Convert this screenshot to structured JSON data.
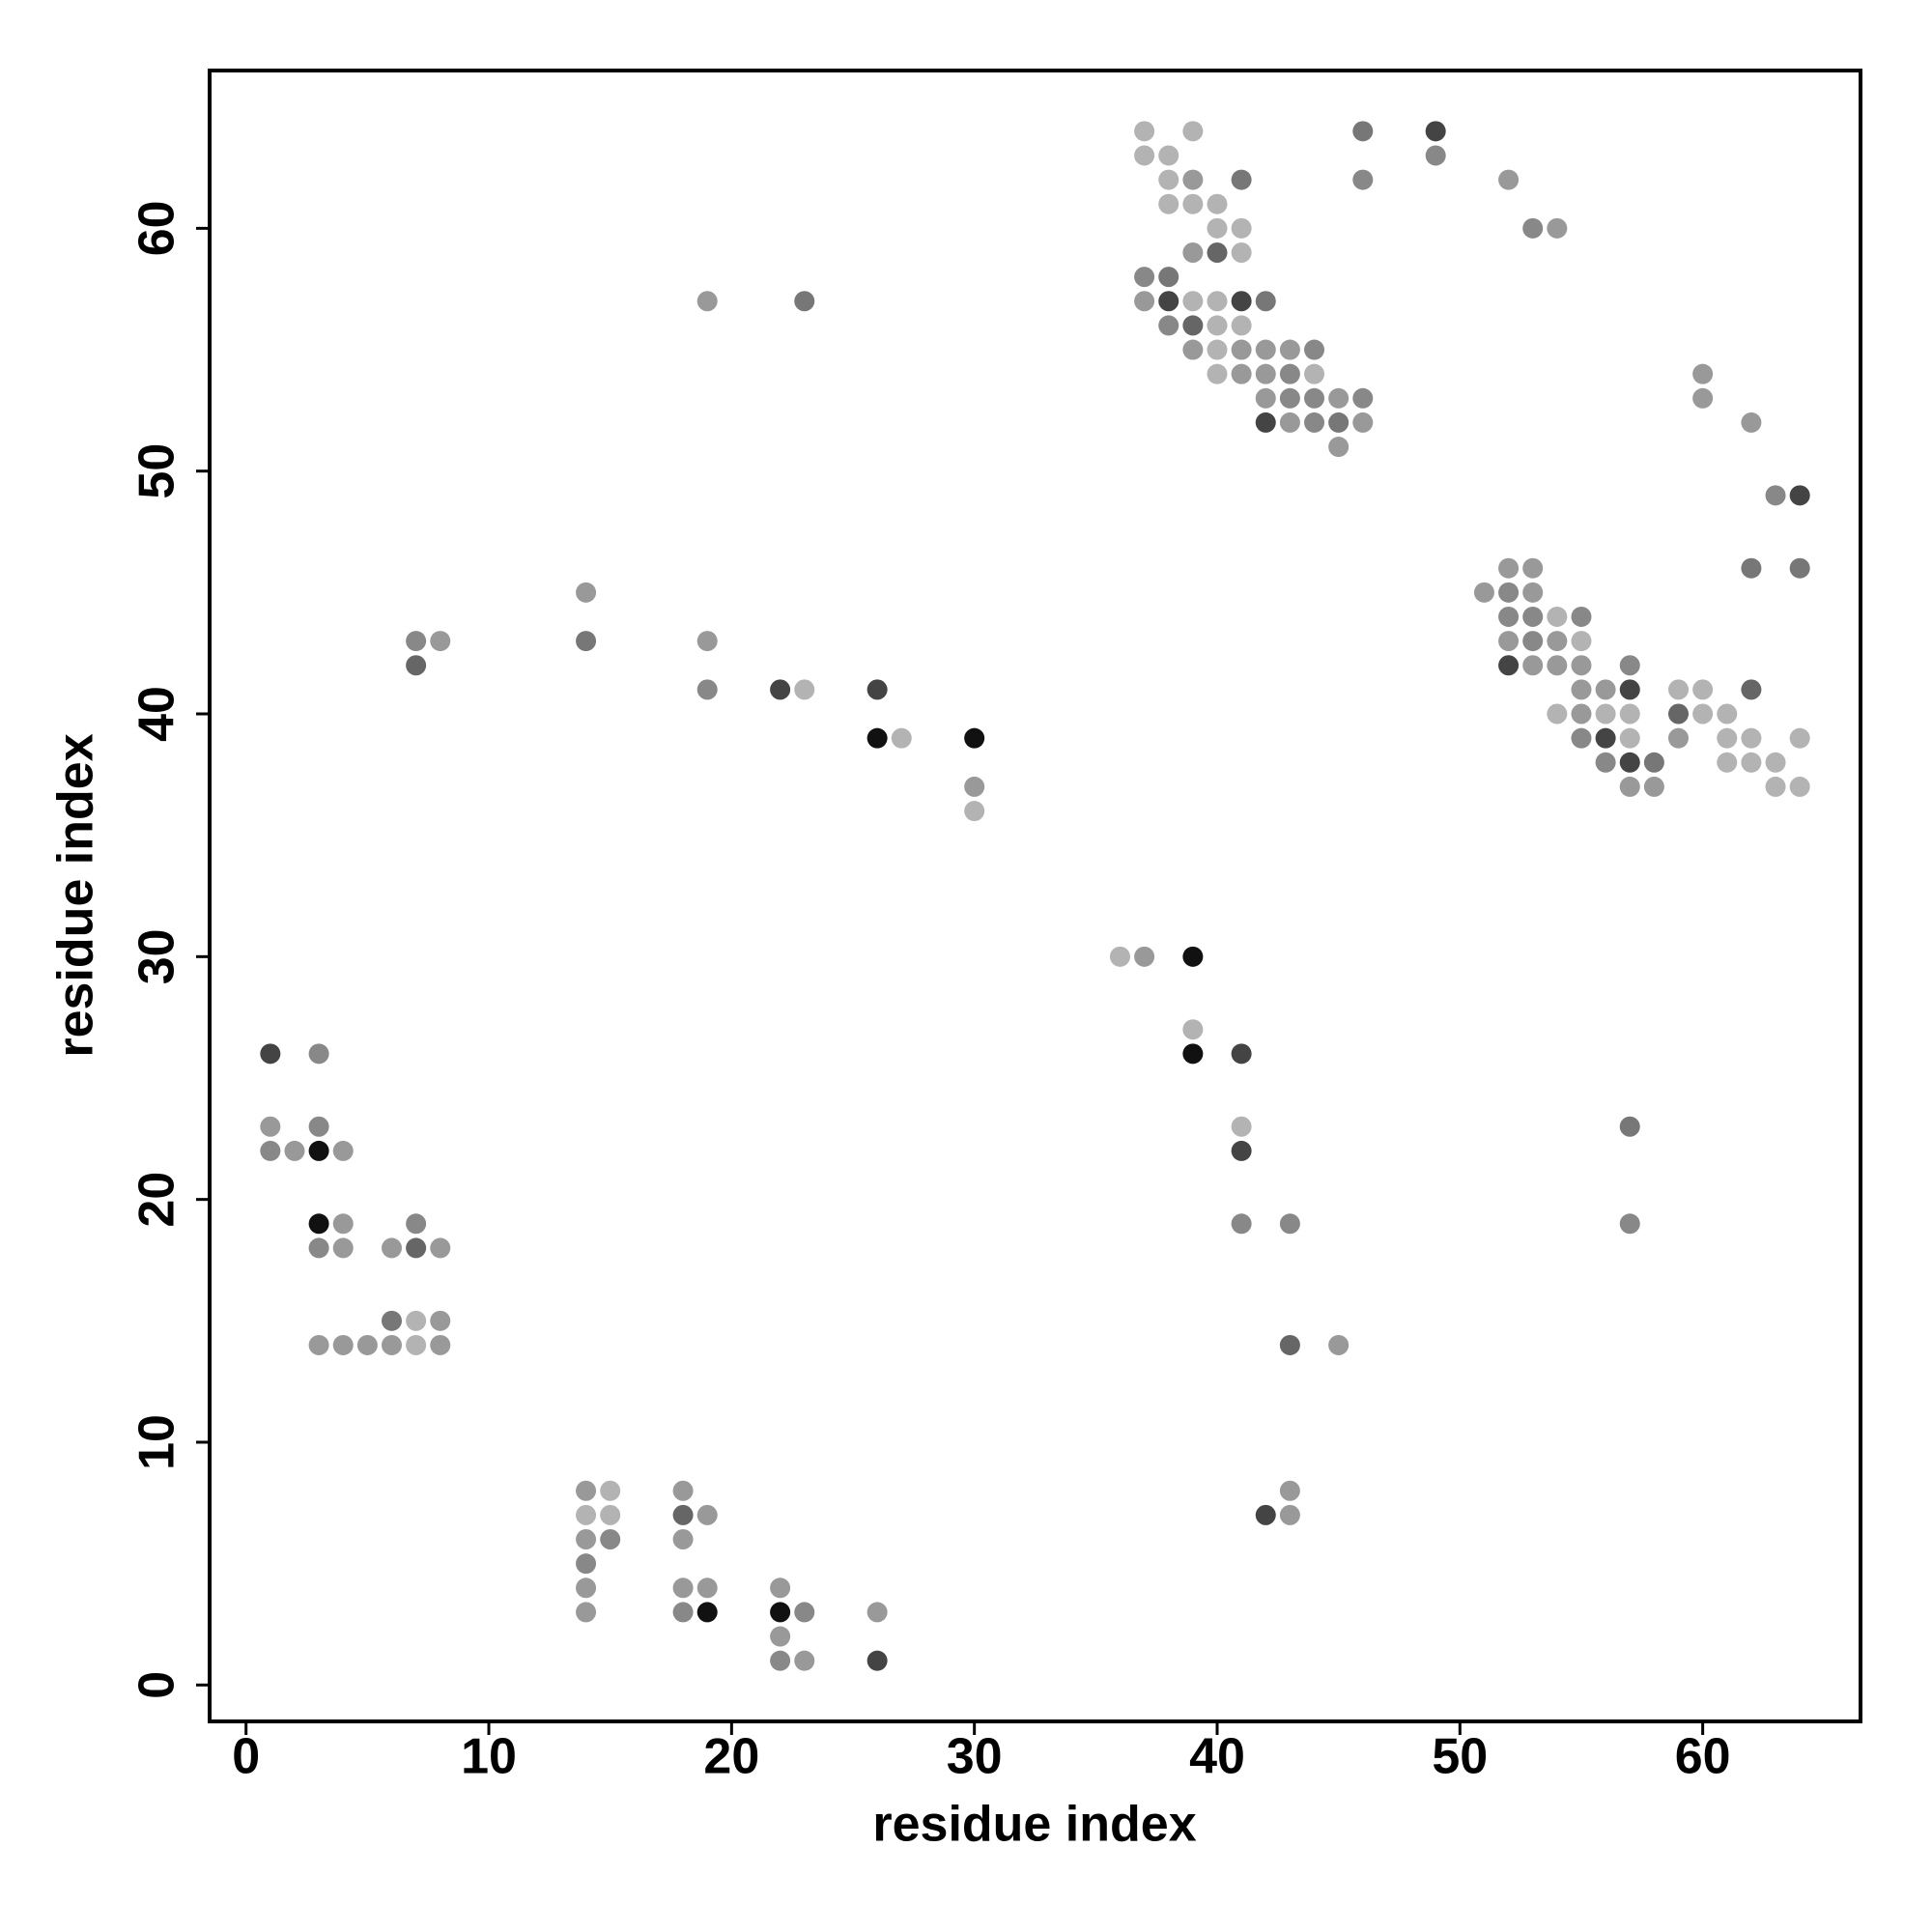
{
  "chart_data": {
    "type": "scatter",
    "xlabel": "residue index",
    "ylabel": "residue index",
    "xlim": [
      -1.5,
      66.5
    ],
    "ylim": [
      -1.5,
      66.5
    ],
    "xticks": [
      0,
      10,
      20,
      30,
      40,
      50,
      60
    ],
    "yticks": [
      0,
      10,
      20,
      30,
      40,
      50,
      60
    ],
    "x": [
      37,
      39,
      46,
      49,
      37,
      38,
      49,
      38,
      39,
      41,
      46,
      52,
      38,
      39,
      40,
      40,
      41,
      53,
      54,
      39,
      40,
      41,
      37,
      38,
      19,
      23,
      37,
      38,
      39,
      40,
      41,
      42,
      38,
      39,
      40,
      41,
      39,
      40,
      41,
      42,
      43,
      44,
      40,
      41,
      42,
      43,
      44,
      60,
      42,
      43,
      44,
      45,
      46,
      60,
      42,
      43,
      44,
      45,
      46,
      62,
      45,
      63,
      64,
      52,
      53,
      62,
      64,
      14,
      51,
      52,
      53,
      52,
      53,
      54,
      55,
      7,
      8,
      14,
      19,
      52,
      53,
      54,
      55,
      7,
      52,
      53,
      54,
      55,
      57,
      19,
      22,
      23,
      26,
      55,
      56,
      57,
      59,
      60,
      62,
      54,
      55,
      56,
      57,
      59,
      60,
      61,
      26,
      27,
      30,
      55,
      56,
      57,
      59,
      61,
      62,
      64,
      56,
      57,
      58,
      61,
      62,
      63,
      30,
      57,
      58,
      63,
      64,
      30,
      36,
      37,
      39,
      39,
      1,
      3,
      39,
      41,
      1,
      3,
      41,
      57,
      1,
      2,
      3,
      4,
      41,
      3,
      4,
      7,
      41,
      43,
      57,
      3,
      4,
      6,
      7,
      8,
      6,
      7,
      8,
      3,
      4,
      5,
      6,
      7,
      8,
      43,
      45,
      14,
      15,
      18,
      43,
      14,
      15,
      18,
      19,
      42,
      43,
      14,
      15,
      18,
      14,
      14,
      18,
      19,
      22,
      14,
      18,
      19,
      22,
      23,
      26,
      22,
      22,
      23,
      26
    ],
    "values": [
      64,
      64,
      64,
      64,
      63,
      63,
      63,
      62,
      62,
      62,
      62,
      62,
      61,
      61,
      61,
      60,
      60,
      60,
      60,
      59,
      59,
      59,
      58,
      58,
      57,
      57,
      57,
      57,
      57,
      57,
      57,
      57,
      56,
      56,
      56,
      56,
      55,
      55,
      55,
      55,
      55,
      55,
      54,
      54,
      54,
      54,
      54,
      54,
      53,
      53,
      53,
      53,
      53,
      53,
      52,
      52,
      52,
      52,
      52,
      52,
      51,
      49,
      49,
      46,
      46,
      46,
      46,
      45,
      45,
      45,
      45,
      44,
      44,
      44,
      44,
      43,
      43,
      43,
      43,
      43,
      43,
      43,
      43,
      42,
      42,
      42,
      42,
      42,
      42,
      41,
      41,
      41,
      41,
      41,
      41,
      41,
      41,
      41,
      41,
      40,
      40,
      40,
      40,
      40,
      40,
      40,
      39,
      39,
      39,
      39,
      39,
      39,
      39,
      39,
      39,
      39,
      38,
      38,
      38,
      38,
      38,
      38,
      37,
      37,
      37,
      37,
      37,
      36,
      30,
      30,
      30,
      27,
      26,
      26,
      26,
      26,
      23,
      23,
      23,
      23,
      22,
      22,
      22,
      22,
      22,
      19,
      19,
      19,
      19,
      19,
      19,
      18,
      18,
      18,
      18,
      18,
      15,
      15,
      15,
      14,
      14,
      14,
      14,
      14,
      14,
      14,
      14,
      8,
      8,
      8,
      8,
      7,
      7,
      7,
      7,
      7,
      7,
      6,
      6,
      6,
      5,
      4,
      4,
      4,
      4,
      3,
      3,
      3,
      3,
      3,
      3,
      2,
      1,
      1,
      1
    ],
    "colors": [
      "#b3b3b3",
      "#b3b3b3",
      "#777777",
      "#444444",
      "#b3b3b3",
      "#b3b3b3",
      "#888888",
      "#b3b3b3",
      "#999999",
      "#777777",
      "#888888",
      "#999999",
      "#b3b3b3",
      "#b3b3b3",
      "#b3b3b3",
      "#b3b3b3",
      "#b3b3b3",
      "#888888",
      "#999999",
      "#999999",
      "#666666",
      "#b3b3b3",
      "#888888",
      "#777777",
      "#999999",
      "#777777",
      "#999999",
      "#444444",
      "#b3b3b3",
      "#b3b3b3",
      "#444444",
      "#777777",
      "#888888",
      "#666666",
      "#b3b3b3",
      "#b3b3b3",
      "#999999",
      "#b3b3b3",
      "#999999",
      "#999999",
      "#999999",
      "#888888",
      "#b3b3b3",
      "#999999",
      "#999999",
      "#888888",
      "#b3b3b3",
      "#999999",
      "#999999",
      "#888888",
      "#888888",
      "#999999",
      "#888888",
      "#999999",
      "#444444",
      "#999999",
      "#888888",
      "#777777",
      "#999999",
      "#999999",
      "#999999",
      "#888888",
      "#444444",
      "#999999",
      "#999999",
      "#777777",
      "#777777",
      "#999999",
      "#999999",
      "#888888",
      "#999999",
      "#888888",
      "#888888",
      "#b3b3b3",
      "#888888",
      "#888888",
      "#999999",
      "#777777",
      "#999999",
      "#999999",
      "#888888",
      "#999999",
      "#b3b3b3",
      "#666666",
      "#444444",
      "#999999",
      "#999999",
      "#999999",
      "#888888",
      "#888888",
      "#444444",
      "#b3b3b3",
      "#444444",
      "#999999",
      "#999999",
      "#444444",
      "#b3b3b3",
      "#b3b3b3",
      "#666666",
      "#b3b3b3",
      "#999999",
      "#b3b3b3",
      "#b3b3b3",
      "#666666",
      "#b3b3b3",
      "#b3b3b3",
      "#111111",
      "#b3b3b3",
      "#111111",
      "#888888",
      "#444444",
      "#b3b3b3",
      "#999999",
      "#b3b3b3",
      "#b3b3b3",
      "#b3b3b3",
      "#888888",
      "#444444",
      "#777777",
      "#b3b3b3",
      "#b3b3b3",
      "#b3b3b3",
      "#999999",
      "#999999",
      "#999999",
      "#b3b3b3",
      "#b3b3b3",
      "#b3b3b3",
      "#b3b3b3",
      "#999999",
      "#111111",
      "#b3b3b3",
      "#444444",
      "#888888",
      "#111111",
      "#444444",
      "#999999",
      "#888888",
      "#b3b3b3",
      "#777777",
      "#888888",
      "#999999",
      "#111111",
      "#999999",
      "#444444",
      "#111111",
      "#999999",
      "#888888",
      "#888888",
      "#888888",
      "#888888",
      "#888888",
      "#999999",
      "#999999",
      "#666666",
      "#999999",
      "#777777",
      "#b3b3b3",
      "#999999",
      "#999999",
      "#999999",
      "#999999",
      "#999999",
      "#b3b3b3",
      "#999999",
      "#666666",
      "#999999",
      "#999999",
      "#b3b3b3",
      "#999999",
      "#999999",
      "#b3b3b3",
      "#b3b3b3",
      "#666666",
      "#999999",
      "#444444",
      "#999999",
      "#999999",
      "#888888",
      "#999999",
      "#888888",
      "#999999",
      "#999999",
      "#999999",
      "#999999",
      "#999999",
      "#888888",
      "#111111",
      "#111111",
      "#888888",
      "#999999",
      "#999999",
      "#888888",
      "#999999",
      "#444444"
    ]
  }
}
